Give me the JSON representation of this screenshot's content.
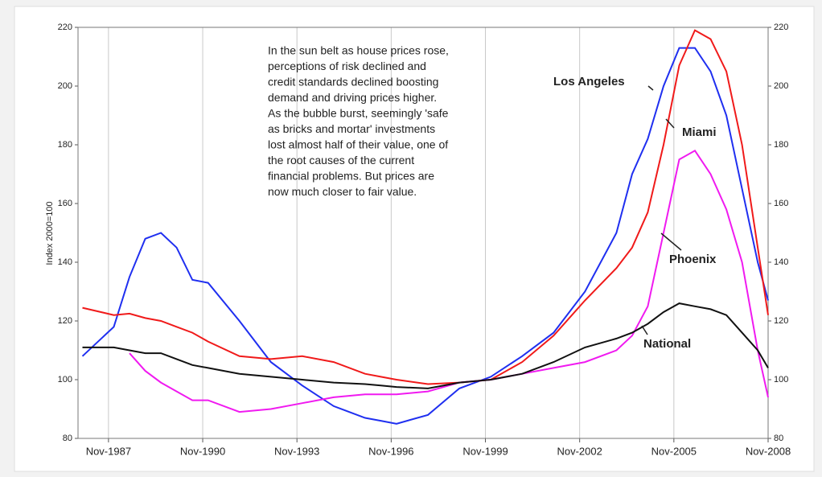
{
  "chart_data": {
    "type": "line",
    "annotation": [
      "In the sun belt as house prices rose,",
      "perceptions of risk declined and",
      "credit standards declined boosting",
      "demand and driving prices higher.",
      "As the bubble burst, seemingly 'safe",
      "as bricks and mortar' investments",
      "lost almost half of their value, one of",
      "the root causes of the current",
      "financial problems. But prices are",
      "now much closer to fair value."
    ],
    "y_label": "Index 2000=100",
    "x": [
      1987,
      1988,
      1988.5,
      1989,
      1989.5,
      1990,
      1990.5,
      1991,
      1992,
      1993,
      1994,
      1995,
      1996,
      1996.5,
      1997,
      1998,
      1999,
      2000,
      2001,
      2002,
      2003,
      2004,
      2004.5,
      2005,
      2005.5,
      2006,
      2006.5,
      2007,
      2007.5,
      2008,
      2008.5,
      2008.83
    ],
    "series": [
      {
        "name": "Los Angeles",
        "color": "#1f2ff0",
        "values": [
          108,
          118,
          135,
          148,
          150,
          145,
          134,
          133,
          120,
          106,
          98,
          91,
          87,
          86,
          85,
          88,
          97,
          101,
          108,
          116,
          130,
          150,
          170,
          182,
          200,
          213,
          213,
          205,
          190,
          165,
          140,
          127
        ]
      },
      {
        "name": "Miami",
        "color": "#f01a1a",
        "values": [
          124.5,
          122,
          122.5,
          121,
          120,
          118,
          116,
          113,
          108,
          107,
          108,
          106,
          102,
          101,
          100,
          98.5,
          99,
          100,
          106,
          115,
          127,
          138,
          145,
          157,
          180,
          207,
          219,
          216,
          205,
          180,
          145,
          122
        ]
      },
      {
        "name": "Phoenix",
        "color": "#f01af0",
        "values": [
          null,
          null,
          109,
          103,
          99,
          96,
          93,
          93,
          89,
          90,
          92,
          94,
          95,
          95,
          95,
          96,
          99,
          100,
          102,
          104,
          106,
          110,
          115,
          125,
          150,
          175,
          178,
          170,
          158,
          140,
          110,
          94
        ]
      },
      {
        "name": "National",
        "color": "#111111",
        "values": [
          111,
          111,
          110,
          109,
          109,
          107,
          105,
          104,
          102,
          101,
          100,
          99,
          98.5,
          98,
          97.5,
          97,
          99,
          100,
          102,
          106,
          111,
          114,
          116,
          119,
          123,
          126,
          125,
          124,
          122,
          116,
          110,
          104
        ]
      }
    ],
    "xlim": [
      1986.86,
      2008.83
    ],
    "xticks": [
      {
        "value": 1987.83,
        "label": "Nov-1987"
      },
      {
        "value": 1990.83,
        "label": "Nov-1990"
      },
      {
        "value": 1993.83,
        "label": "Nov-1993"
      },
      {
        "value": 1996.83,
        "label": "Nov-1996"
      },
      {
        "value": 1999.83,
        "label": "Nov-1999"
      },
      {
        "value": 2002.83,
        "label": "Nov-2002"
      },
      {
        "value": 2005.83,
        "label": "Nov-2005"
      },
      {
        "value": 2008.83,
        "label": "Nov-2008"
      }
    ],
    "ylim": [
      80,
      220
    ],
    "yticks": [
      80,
      100,
      120,
      140,
      160,
      180,
      200,
      220
    ],
    "grid": true
  }
}
